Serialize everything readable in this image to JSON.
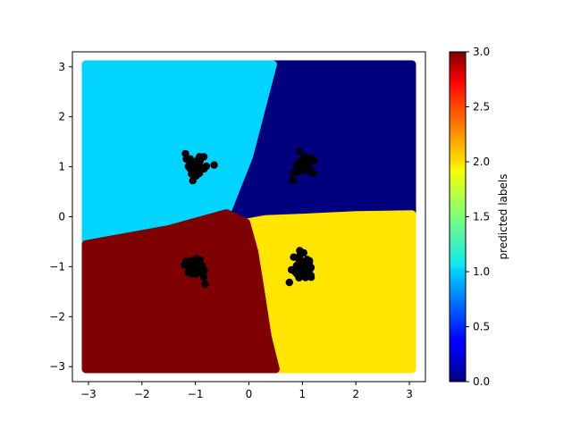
{
  "chart_data": {
    "type": "scatter",
    "title": "",
    "xlabel": "",
    "ylabel": "",
    "xlim": [
      -3.3,
      3.3
    ],
    "ylim": [
      -3.3,
      3.3
    ],
    "xticks": [
      -3,
      -2,
      -1,
      0,
      1,
      2,
      3
    ],
    "yticks": [
      -3,
      -2,
      -1,
      0,
      1,
      2,
      3
    ],
    "xtick_labels": [
      "−3",
      "−2",
      "−1",
      "0",
      "1",
      "2",
      "3"
    ],
    "ytick_labels": [
      "−3",
      "−2",
      "−1",
      "0",
      "1",
      "2",
      "3"
    ],
    "grid": false,
    "grid_range": [
      -3,
      3
    ],
    "regions": [
      {
        "label": 0,
        "color": "#00007f",
        "polygon": [
          [
            0.45,
            3.05
          ],
          [
            3.05,
            3.05
          ],
          [
            3.05,
            0.05
          ],
          [
            2.0,
            0.03
          ],
          [
            1.0,
            -0.02
          ],
          [
            0.3,
            -0.05
          ],
          [
            -0.05,
            -0.12
          ],
          [
            -0.42,
            0.07
          ],
          [
            0.0,
            1.2
          ]
        ]
      },
      {
        "label": 1,
        "color": "#00d4ff",
        "polygon": [
          [
            -3.05,
            3.05
          ],
          [
            0.45,
            3.05
          ],
          [
            0.0,
            1.2
          ],
          [
            -0.42,
            0.07
          ],
          [
            -1.5,
            -0.25
          ],
          [
            -3.05,
            -0.55
          ]
        ]
      },
      {
        "label": 2,
        "color": "#ffe500",
        "polygon": [
          [
            3.05,
            0.05
          ],
          [
            3.05,
            -3.05
          ],
          [
            0.5,
            -3.05
          ],
          [
            0.35,
            -2.4
          ],
          [
            0.22,
            -1.5
          ],
          [
            0.1,
            -0.7
          ],
          [
            -0.05,
            -0.12
          ],
          [
            0.3,
            -0.05
          ],
          [
            1.0,
            -0.02
          ],
          [
            2.0,
            0.03
          ]
        ]
      },
      {
        "label": 3,
        "color": "#7f0000",
        "polygon": [
          [
            -3.05,
            -0.55
          ],
          [
            -1.5,
            -0.25
          ],
          [
            -0.42,
            0.07
          ],
          [
            -0.05,
            -0.12
          ],
          [
            0.1,
            -0.7
          ],
          [
            0.22,
            -1.5
          ],
          [
            0.35,
            -2.4
          ],
          [
            0.5,
            -3.05
          ],
          [
            -3.05,
            -3.05
          ]
        ]
      }
    ],
    "clusters": [
      {
        "center": [
          -1.0,
          1.0
        ],
        "count": 60,
        "spread": 0.09
      },
      {
        "center": [
          1.0,
          1.0
        ],
        "count": 60,
        "spread": 0.09
      },
      {
        "center": [
          -1.0,
          -1.0
        ],
        "count": 60,
        "spread": 0.09
      },
      {
        "center": [
          1.0,
          -1.0
        ],
        "count": 60,
        "spread": 0.09
      }
    ],
    "outliers": [
      [
        -1.05,
        0.72
      ],
      [
        -0.82,
        -1.35
      ],
      [
        0.95,
        -0.68
      ],
      [
        0.82,
        0.72
      ]
    ],
    "point_color": "#000000",
    "colorbar": {
      "label": "predicted labels",
      "min": 0.0,
      "max": 3.0,
      "cmap": "jet",
      "ticks": [
        0.0,
        0.5,
        1.0,
        1.5,
        2.0,
        2.5,
        3.0
      ],
      "tick_labels": [
        "0.0",
        "0.5",
        "1.0",
        "1.5",
        "2.0",
        "2.5",
        "3.0"
      ]
    }
  }
}
